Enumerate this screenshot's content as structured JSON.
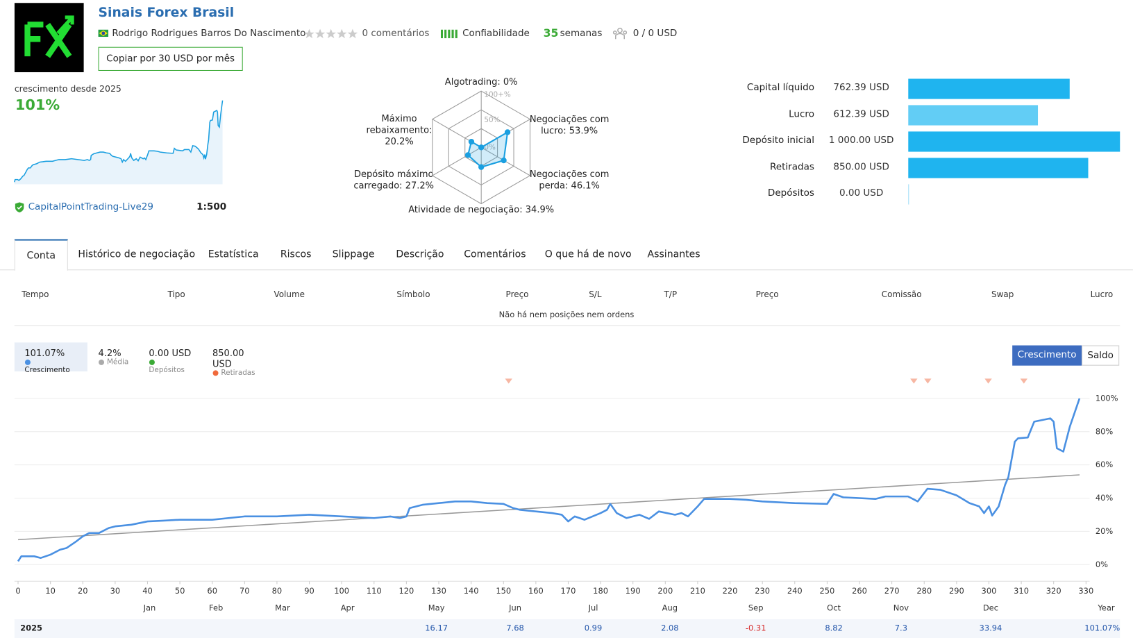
{
  "header": {
    "title": "Sinais Forex Brasil",
    "author": "Rodrigo Rodrigues Barros Do Nascimento",
    "comments": "0 comentários",
    "reliability": "Confiabilidade",
    "weeks_value": "35",
    "weeks_label": "semanas",
    "subscribers": "0 / 0 USD",
    "copy_button": "Copiar por 30 USD por mês"
  },
  "growth_summary": {
    "label": "crescimento desde 2025",
    "value": "101%",
    "account": "CapitalPointTrading-Live29",
    "leverage": "1:500"
  },
  "radar": {
    "max_label": "100+%",
    "mid_label": "50%",
    "zero_label": "0%",
    "color": "#1a9fe0",
    "axes": [
      {
        "label": "Algotrading:",
        "value": 0,
        "value_label": "0%"
      },
      {
        "label": "Negociações com lucro:",
        "value": 53.9,
        "value_label": "53.9%"
      },
      {
        "label": "Negociações com perda:",
        "value": 46.1,
        "value_label": "46.1%"
      },
      {
        "label": "Atividade de negociação:",
        "value": 34.9,
        "value_label": "34.9%"
      },
      {
        "label": "Depósito máximo carregado:",
        "value": 27.2,
        "value_label": "27.2%"
      },
      {
        "label": "Máximo rebaixamento:",
        "value": 20.2,
        "value_label": "20.2%"
      }
    ]
  },
  "balance_stats": {
    "xlim": [
      0,
      1000
    ],
    "items": [
      {
        "label": "Capital líquido",
        "value": 762.39,
        "value_label": "762.39 USD",
        "color": "#1fb4ef"
      },
      {
        "label": "Lucro",
        "value": 612.39,
        "value_label": "612.39 USD",
        "color": "#62cdf5"
      },
      {
        "label": "Depósito inicial",
        "value": 1000,
        "value_label": "1 000.00 USD",
        "color": "#1fb4ef"
      },
      {
        "label": "Retiradas",
        "value": 850,
        "value_label": "850.00 USD",
        "color": "#1fb4ef"
      },
      {
        "label": "Depósitos",
        "value": 0,
        "value_label": "0.00 USD",
        "color": "#9ddcf7"
      }
    ]
  },
  "tabs": {
    "active": 0,
    "items": [
      "Conta",
      "Histórico de negociação",
      "Estatística",
      "Riscos",
      "Slippage",
      "Descrição",
      "Comentários",
      "O que há de novo",
      "Assinantes"
    ]
  },
  "table": {
    "headers": [
      "Tempo",
      "Tipo",
      "Volume",
      "Símbolo",
      "Preço",
      "S/L",
      "T/P",
      "Preço",
      "Comissão",
      "Swap",
      "Lucro"
    ],
    "empty_message": "Não há nem posições nem ordens"
  },
  "chart_summary": [
    {
      "value": "101.07%",
      "label": "Crescimento",
      "color": "#4a90e2"
    },
    {
      "value": "4.2%",
      "label": "Média",
      "color": "#aaaaaa"
    },
    {
      "value": "0.00 USD",
      "label": "Depósitos",
      "color": "#3aaa35"
    },
    {
      "value": "850.00 USD",
      "label": "Retiradas",
      "color": "#f06a3c"
    }
  ],
  "toggle": {
    "active": 0,
    "items": [
      "Crescimento",
      "Saldo"
    ]
  },
  "chart_data": {
    "type": "line",
    "xlim": [
      0,
      330
    ],
    "ylim": [
      -10,
      110
    ],
    "xticks": [
      0,
      10,
      20,
      30,
      40,
      50,
      60,
      70,
      80,
      90,
      100,
      110,
      120,
      130,
      140,
      150,
      160,
      170,
      180,
      190,
      200,
      210,
      220,
      230,
      240,
      250,
      260,
      270,
      280,
      290,
      300,
      310,
      320,
      330
    ],
    "yticks": [
      {
        "value": 0,
        "label": "0%"
      },
      {
        "value": 20,
        "label": "20%"
      },
      {
        "value": 40,
        "label": "40%"
      },
      {
        "value": 60,
        "label": "60%"
      },
      {
        "value": 80,
        "label": "80%"
      },
      {
        "value": 100,
        "label": "100%"
      }
    ],
    "grid": true,
    "series": [
      {
        "name": "Crescimento",
        "color": "#4a90e2",
        "x": [
          0,
          1,
          5,
          7,
          10,
          13,
          15,
          18,
          20,
          22,
          25,
          28,
          30,
          35,
          40,
          45,
          50,
          60,
          65,
          70,
          80,
          90,
          100,
          110,
          115,
          118,
          120,
          121,
          125,
          130,
          135,
          140,
          145,
          150,
          153,
          155,
          165,
          168,
          170,
          172,
          175,
          180,
          182,
          183,
          185,
          188,
          192,
          195,
          198,
          203,
          205,
          207,
          210,
          212,
          220,
          225,
          230,
          240,
          250,
          252,
          255,
          265,
          268,
          275,
          278,
          281,
          285,
          290,
          294,
          297,
          298.5,
          300,
          301,
          303,
          305,
          306,
          308,
          309,
          312,
          314,
          319,
          320,
          321,
          323,
          325,
          328
        ],
        "values": [
          2,
          5,
          5,
          4,
          6,
          9,
          10,
          14,
          17,
          19,
          19,
          22,
          23,
          24,
          26,
          26.5,
          27,
          27,
          28,
          29,
          29,
          30,
          29,
          28,
          29,
          28,
          29,
          34,
          36,
          37,
          38,
          38,
          37,
          36.5,
          34,
          33,
          31,
          30,
          26,
          29,
          27,
          31,
          33,
          36.5,
          31,
          28,
          30,
          27.5,
          32,
          30,
          31,
          29,
          35,
          39.5,
          39.5,
          39,
          38,
          37,
          36.5,
          42.5,
          40.5,
          39.5,
          41,
          41,
          38,
          45.6,
          45,
          41.7,
          37,
          35,
          31,
          35,
          29.5,
          35,
          48,
          52.6,
          74,
          76,
          76.5,
          86,
          88,
          86,
          70,
          68,
          83,
          100
        ]
      }
    ],
    "trend": {
      "color": "#999999",
      "x": [
        0,
        328
      ],
      "values": [
        15,
        54
      ]
    },
    "withdrawal_markers": {
      "color": "#f7b7a3",
      "x": [
        151.6,
        276.8,
        281.1,
        299.8,
        310.8
      ]
    }
  },
  "year_table": {
    "row_label": "2025",
    "columns": [
      "Jan",
      "Feb",
      "Mar",
      "Apr",
      "May",
      "Jun",
      "Jul",
      "Aug",
      "Sep",
      "Oct",
      "Nov",
      "Dec",
      "Year"
    ],
    "values": [
      null,
      null,
      null,
      null,
      16.17,
      7.68,
      0.99,
      2.08,
      -0.31,
      8.82,
      7.3,
      33.94
    ],
    "total": "101.07%"
  }
}
